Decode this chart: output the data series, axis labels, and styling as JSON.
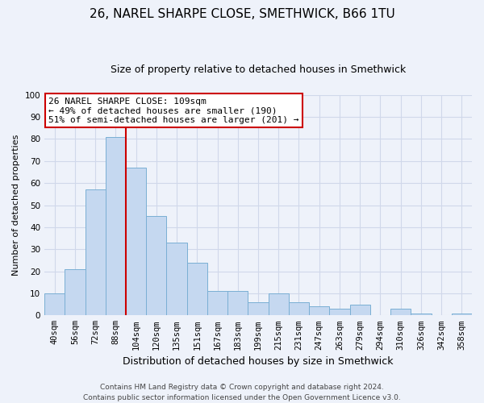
{
  "title": "26, NAREL SHARPE CLOSE, SMETHWICK, B66 1TU",
  "subtitle": "Size of property relative to detached houses in Smethwick",
  "xlabel": "Distribution of detached houses by size in Smethwick",
  "ylabel": "Number of detached properties",
  "categories": [
    "40sqm",
    "56sqm",
    "72sqm",
    "88sqm",
    "104sqm",
    "120sqm",
    "135sqm",
    "151sqm",
    "167sqm",
    "183sqm",
    "199sqm",
    "215sqm",
    "231sqm",
    "247sqm",
    "263sqm",
    "279sqm",
    "294sqm",
    "310sqm",
    "326sqm",
    "342sqm",
    "358sqm"
  ],
  "values": [
    10,
    21,
    57,
    81,
    67,
    45,
    33,
    24,
    11,
    11,
    6,
    10,
    6,
    4,
    3,
    5,
    0,
    3,
    1,
    0,
    1
  ],
  "bar_color": "#c5d8f0",
  "bar_edge_color": "#7aafd4",
  "highlight_line_color": "#cc0000",
  "highlight_bar_index": 4,
  "annotation_line1": "26 NAREL SHARPE CLOSE: 109sqm",
  "annotation_line2": "← 49% of detached houses are smaller (190)",
  "annotation_line3": "51% of semi-detached houses are larger (201) →",
  "annotation_box_color": "#ffffff",
  "annotation_box_edge": "#cc0000",
  "ylim": [
    0,
    100
  ],
  "footnote": "Contains HM Land Registry data © Crown copyright and database right 2024.\nContains public sector information licensed under the Open Government Licence v3.0.",
  "background_color": "#eef2fa",
  "grid_color": "#d0d8ea",
  "title_fontsize": 11,
  "subtitle_fontsize": 9,
  "xlabel_fontsize": 9,
  "ylabel_fontsize": 8,
  "tick_fontsize": 7.5,
  "footnote_fontsize": 6.5,
  "annotation_fontsize": 8
}
